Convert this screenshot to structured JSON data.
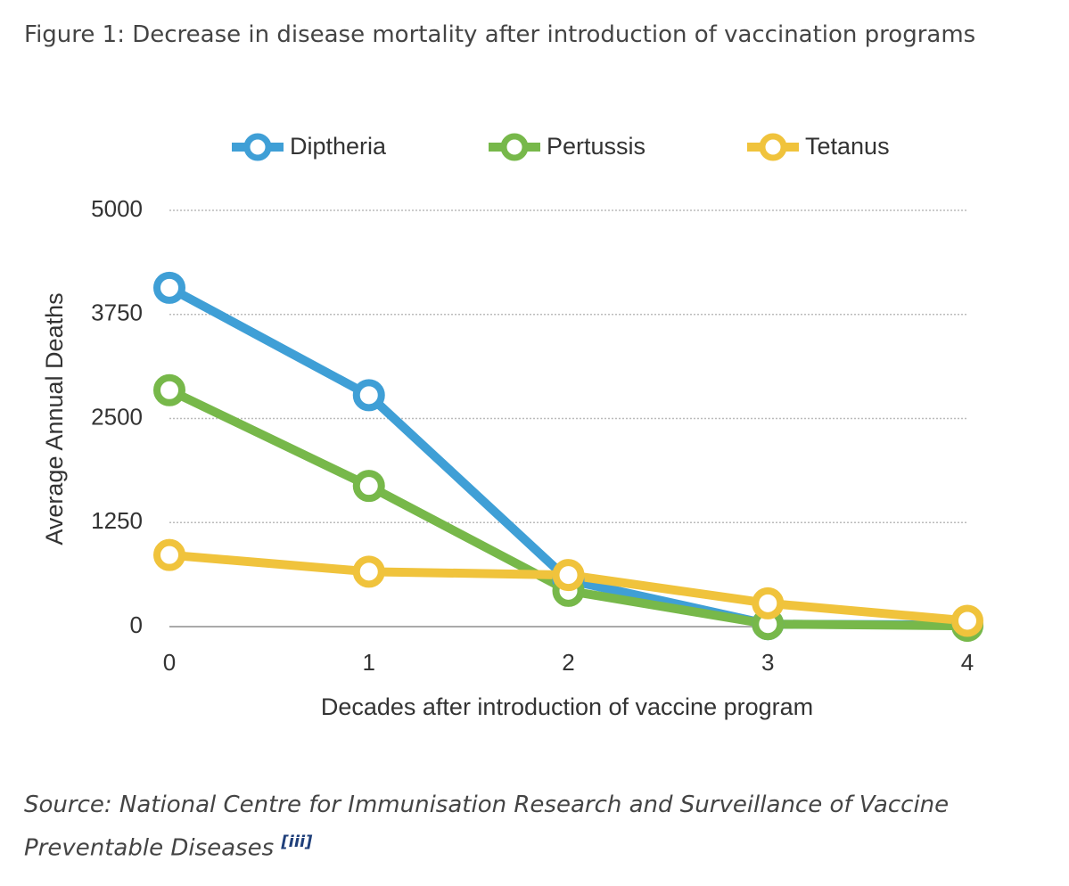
{
  "chart_data": {
    "type": "line",
    "title": "Figure 1: Decrease in disease mortality after introduction of vaccination programs",
    "x_label": "Decades after introduction of vaccine program",
    "y_label": "Average Annual Deaths",
    "x": [
      0,
      1,
      2,
      3,
      4
    ],
    "xlim": [
      0,
      4
    ],
    "xticks": [
      0,
      1,
      2,
      3,
      4
    ],
    "ylim": [
      0,
      5000
    ],
    "yticks": [
      0,
      1250,
      2500,
      3750,
      5000
    ],
    "grid": true,
    "legend": "top",
    "series": [
      {
        "name": "Diptheria",
        "color": "#3f9fd6",
        "values": [
          4070,
          2780,
          560,
          30,
          20
        ]
      },
      {
        "name": "Pertussis",
        "color": "#77b84a",
        "values": [
          2840,
          1690,
          430,
          30,
          10
        ]
      },
      {
        "name": "Tetanus",
        "color": "#f0c33c",
        "values": [
          860,
          660,
          620,
          280,
          70
        ]
      }
    ],
    "source": "Source: National Centre for Immunisation Research and Surveillance of Vaccine Preventable Diseases",
    "source_ref": "[iii]"
  }
}
